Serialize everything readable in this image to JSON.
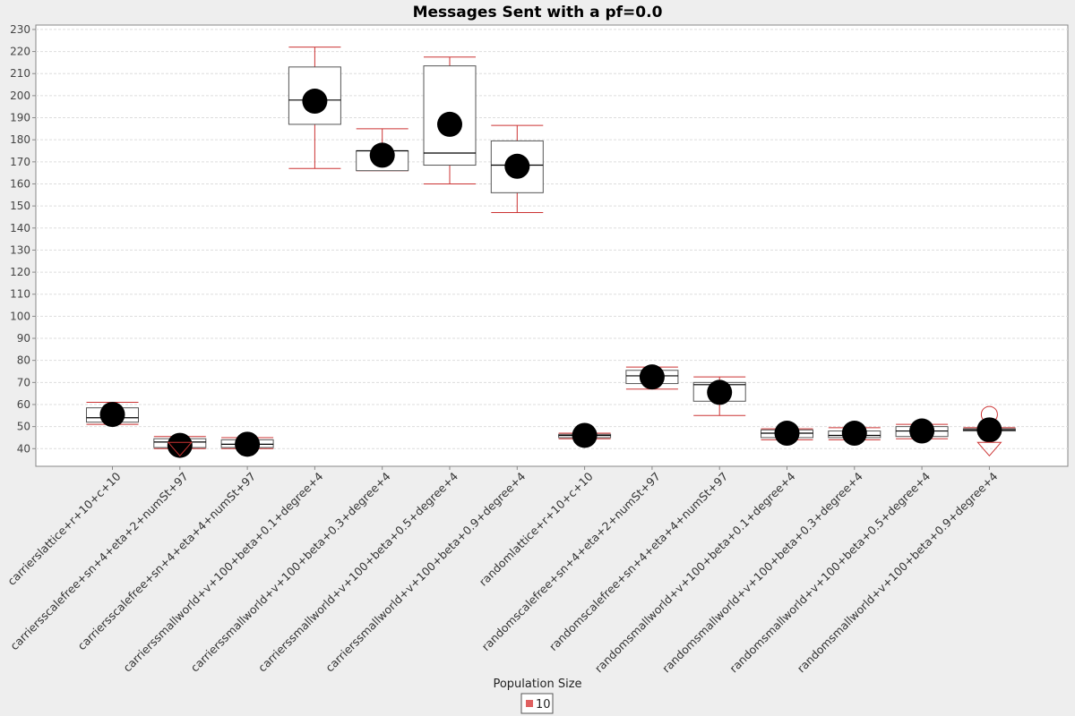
{
  "chart_data": {
    "type": "box",
    "title": "Messages Sent with a pf=0.0",
    "xlabel": "",
    "ylabel": "",
    "ylim": [
      32,
      232
    ],
    "yticks": [
      40,
      50,
      60,
      70,
      80,
      90,
      100,
      110,
      120,
      130,
      140,
      150,
      160,
      170,
      180,
      190,
      200,
      210,
      220,
      230
    ],
    "grid": true,
    "legend": {
      "title": "Population Size",
      "position": "bottom-center",
      "items": [
        "10"
      ]
    },
    "colors": {
      "whisker": "#cc3333",
      "box": "#555555",
      "mean": "#000000",
      "outlier": "#cc3333",
      "legend_swatch": "#e06060"
    },
    "categories": [
      "carrierslattice+r+10+c+10",
      "carriersscalefree+sn+4+eta+2+numSt+97",
      "carriersscalefree+sn+4+eta+4+numSt+97",
      "carrierssmallworld+v+100+beta+0.1+degree+4",
      "carrierssmallworld+v+100+beta+0.3+degree+4",
      "carrierssmallworld+v+100+beta+0.5+degree+4",
      "carrierssmallworld+v+100+beta+0.9+degree+4",
      "randomlattice+r+10+c+10",
      "randomscalefree+sn+4+eta+2+numSt+97",
      "randomscalefree+sn+4+eta+4+numSt+97",
      "randomsmallworld+v+100+beta+0.1+degree+4",
      "randomsmallworld+v+100+beta+0.3+degree+4",
      "randomsmallworld+v+100+beta+0.5+degree+4",
      "randomsmallworld+v+100+beta+0.9+degree+4"
    ],
    "series": [
      {
        "name": "10",
        "boxes": [
          {
            "min": 51,
            "q1": 52,
            "median": 54,
            "q3": 58.5,
            "max": 61,
            "mean": 55.5
          },
          {
            "min": 40,
            "q1": 40.5,
            "median": 43,
            "q3": 44.5,
            "max": 45.5,
            "mean": 41.5,
            "outliers_low": [
              40
            ]
          },
          {
            "min": 40,
            "q1": 40.5,
            "median": 42,
            "q3": 44,
            "max": 45,
            "mean": 42
          },
          {
            "min": 167,
            "q1": 187,
            "median": 198,
            "q3": 213,
            "max": 222,
            "mean": 197.5
          },
          {
            "min": 166,
            "q1": 166,
            "median": 175,
            "q3": 175,
            "max": 185,
            "mean": 173
          },
          {
            "min": 160,
            "q1": 168.5,
            "median": 174,
            "q3": 213.5,
            "max": 217.5,
            "mean": 187
          },
          {
            "min": 147,
            "q1": 156,
            "median": 168.5,
            "q3": 179.5,
            "max": 186.5,
            "mean": 168
          },
          {
            "min": 44.5,
            "q1": 45,
            "median": 46,
            "q3": 46.5,
            "max": 47,
            "mean": 46
          },
          {
            "min": 67,
            "q1": 69.5,
            "median": 73,
            "q3": 75.5,
            "max": 77,
            "mean": 72.5
          },
          {
            "min": 55,
            "q1": 61.5,
            "median": 69,
            "q3": 70,
            "max": 72.5,
            "mean": 65.5
          },
          {
            "min": 44,
            "q1": 45,
            "median": 47,
            "q3": 48.5,
            "max": 49,
            "mean": 47
          },
          {
            "min": 44,
            "q1": 45,
            "median": 46,
            "q3": 48,
            "max": 49.5,
            "mean": 47
          },
          {
            "min": 44.5,
            "q1": 45.5,
            "median": 48,
            "q3": 50,
            "max": 51,
            "mean": 48
          },
          {
            "min": 48,
            "q1": 48,
            "median": 48.5,
            "q3": 49,
            "max": 49.5,
            "mean": 48.5,
            "outliers_high": [
              55.5
            ],
            "outliers_low": [
              40
            ]
          }
        ]
      }
    ]
  }
}
